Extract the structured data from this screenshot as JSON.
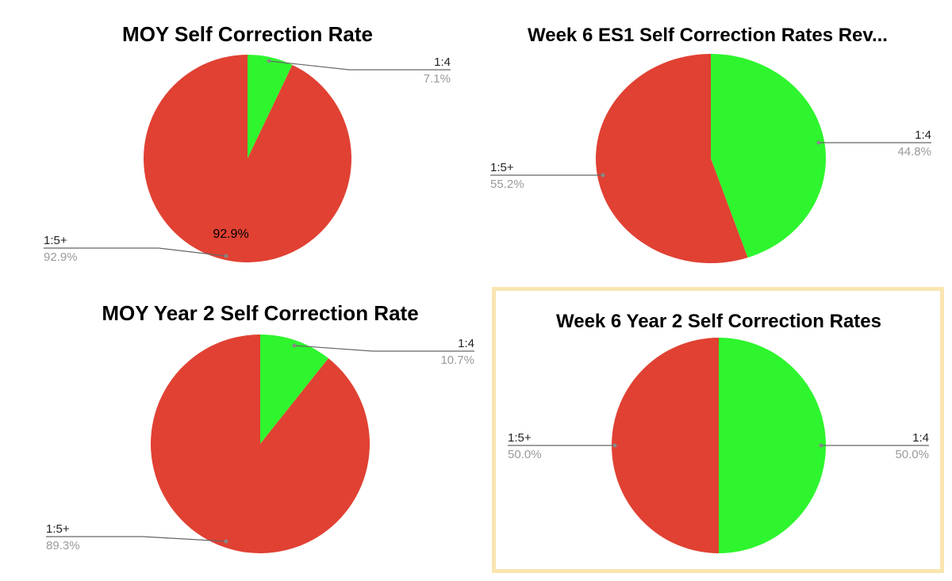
{
  "colors": {
    "red": "#e04133",
    "green": "#2ef52e",
    "leader": "#666666"
  },
  "chart_data": [
    {
      "type": "pie",
      "title": "MOY Self Correction Rate",
      "slices": [
        {
          "label": "1:4",
          "value": 7.1,
          "display": "7.1%",
          "color": "#2ef52e"
        },
        {
          "label": "1:5+",
          "value": 92.9,
          "display": "92.9%",
          "color": "#e04133",
          "inside_label": "92.9%"
        }
      ]
    },
    {
      "type": "pie",
      "title": "Week 6 ES1 Self Correction Rates Rev...",
      "slices": [
        {
          "label": "1:4",
          "value": 44.8,
          "display": "44.8%",
          "color": "#2ef52e"
        },
        {
          "label": "1:5+",
          "value": 55.2,
          "display": "55.2%",
          "color": "#e04133"
        }
      ]
    },
    {
      "type": "pie",
      "title": "MOY Year 2 Self Correction Rate",
      "slices": [
        {
          "label": "1:4",
          "value": 10.7,
          "display": "10.7%",
          "color": "#2ef52e"
        },
        {
          "label": "1:5+",
          "value": 89.3,
          "display": "89.3%",
          "color": "#e04133"
        }
      ]
    },
    {
      "type": "pie",
      "title": "Week 6 Year 2 Self Correction Rates",
      "slices": [
        {
          "label": "1:4",
          "value": 50.0,
          "display": "50.0%",
          "color": "#2ef52e"
        },
        {
          "label": "1:5+",
          "value": 50.0,
          "display": "50.0%",
          "color": "#e04133"
        }
      ]
    }
  ]
}
